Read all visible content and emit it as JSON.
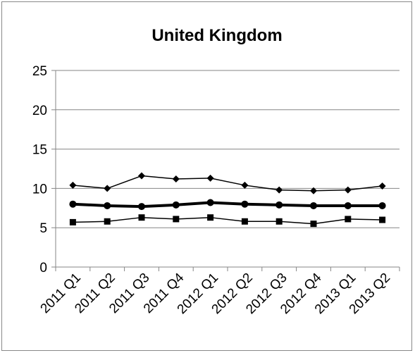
{
  "chart_data": {
    "type": "line",
    "title": "United Kingdom",
    "xlabel": "",
    "ylabel": "",
    "categories": [
      "2011 Q1",
      "2011 Q2",
      "2011 Q3",
      "2011 Q4",
      "2012 Q1",
      "2012 Q2",
      "2012 Q3",
      "2012 Q4",
      "2013 Q1",
      "2013 Q2"
    ],
    "ylim": [
      0,
      25
    ],
    "yticks": [
      "0",
      "5",
      "10",
      "15",
      "20",
      "25"
    ],
    "grid": true,
    "legend": "none",
    "series": [
      {
        "marker": "diamond",
        "line_width": "thin",
        "values": [
          10.4,
          10.0,
          11.6,
          11.2,
          11.3,
          10.4,
          9.8,
          9.7,
          9.8,
          10.3
        ]
      },
      {
        "marker": "circle",
        "line_width": "thick",
        "values": [
          8.0,
          7.8,
          7.7,
          7.9,
          8.2,
          8.0,
          7.9,
          7.8,
          7.8,
          7.8
        ]
      },
      {
        "marker": "square",
        "line_width": "thin",
        "values": [
          5.7,
          5.8,
          6.3,
          6.1,
          6.3,
          5.8,
          5.8,
          5.5,
          6.1,
          6.0
        ]
      }
    ],
    "colors": {
      "line": "#000000",
      "grid": "#868686"
    }
  }
}
